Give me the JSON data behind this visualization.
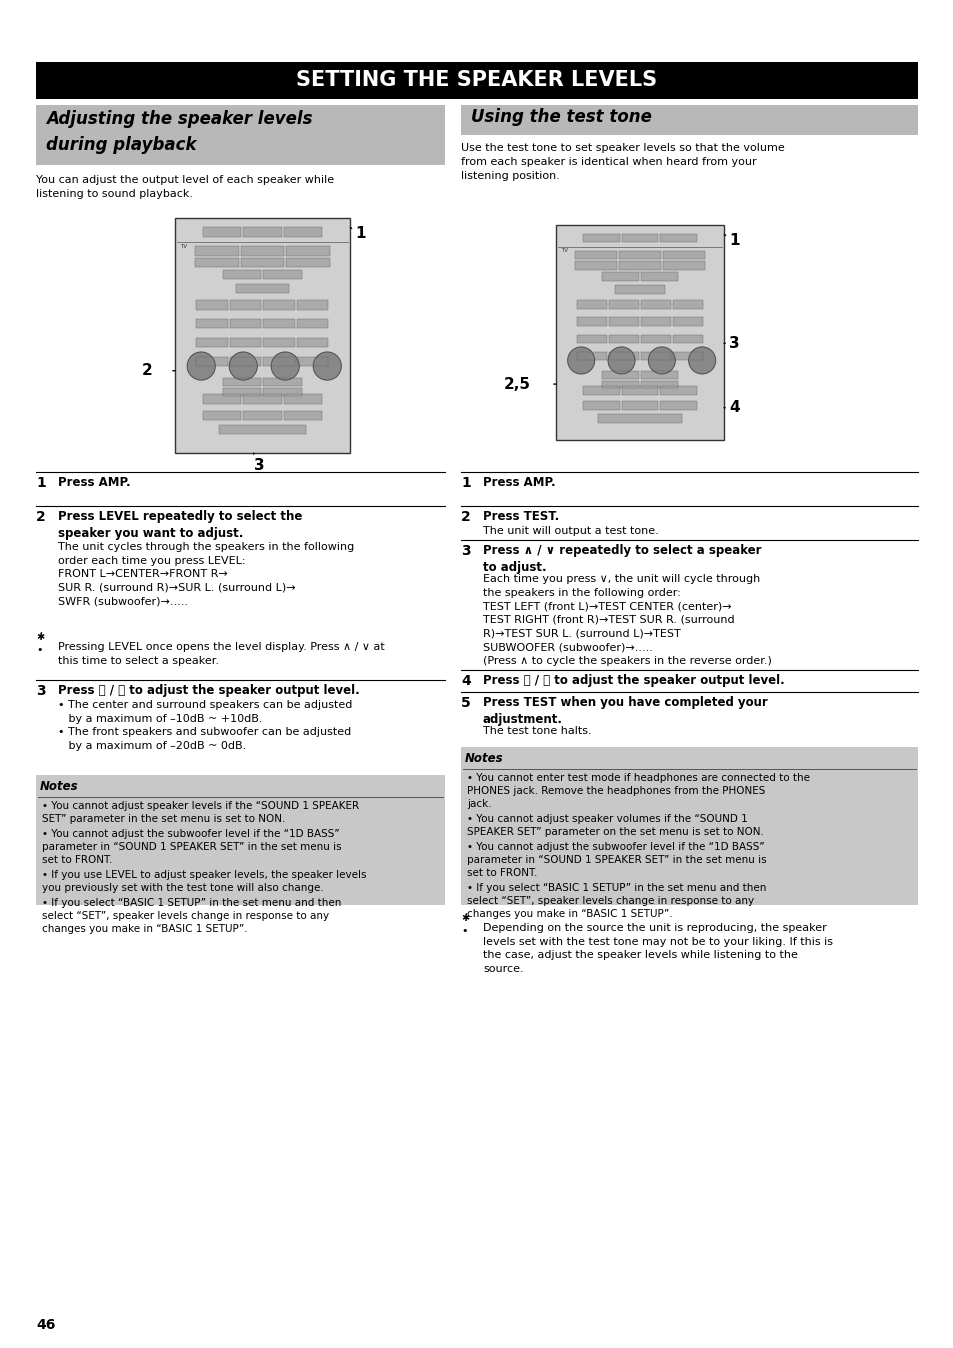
{
  "bg_color": "#ffffff",
  "title_bar": {
    "text": "SETTING THE SPEAKER LEVELS",
    "bg_color": "#000000",
    "text_color": "#ffffff",
    "font_size": 15,
    "bold": true
  },
  "left_section_header": "Adjusting the speaker levels\nduring playback",
  "right_section_header": "Using the test tone",
  "section_header_bg": "#b8b8b8",
  "section_header_text_color": "#000000",
  "section_header_font_size": 12,
  "left_intro": "You can adjust the output level of each speaker while\nlistening to sound playback.",
  "right_intro": "Use the test tone to set speaker levels so that the volume\nfrom each speaker is identical when heard from your\nlistening position.",
  "left_tip": "Pressing LEVEL once opens the level display. Press ∧ / ∨ at\nthis time to select a speaker.",
  "left_notes_title": "Notes",
  "left_notes": [
    "You cannot adjust speaker levels if the “SOUND 1 SPEAKER\nSET” parameter in the set menu is set to NON.",
    "You cannot adjust the subwoofer level if the “1D BASS”\nparameter in “SOUND 1 SPEAKER SET” in the set menu is\nset to FRONT.",
    "If you use LEVEL to adjust speaker levels, the speaker levels\nyou previously set with the test tone will also change.",
    "If you select “BASIC 1 SETUP” in the set menu and then\nselect “SET”, speaker levels change in response to any\nchanges you make in “BASIC 1 SETUP”."
  ],
  "right_steps_data": [
    {
      "num": "1",
      "bold_text": "Press AMP.",
      "normal_text": ""
    },
    {
      "num": "2",
      "bold_text": "Press TEST.",
      "normal_text": "The unit will output a test tone."
    },
    {
      "num": "3",
      "bold_text": "Press ∧ / ∨ repeatedly to select a speaker\nto adjust.",
      "normal_text": "Each time you press ∨, the unit will cycle through\nthe speakers in the following order:\nTEST LEFT (front L)→TEST CENTER (center)→\nTEST RIGHT (front R)→TEST SUR R. (surround\nR)→TEST SUR L. (surround L)→TEST\nSUBWOOFER (subwoofer)→.....\n(Press ∧ to cycle the speakers in the reverse order.)"
    },
    {
      "num": "4",
      "bold_text": "Press 〈 / 〉 to adjust the speaker output level.",
      "normal_text": ""
    },
    {
      "num": "5",
      "bold_text": "Press TEST when you have completed your\nadjustment.",
      "normal_text": "The test tone halts."
    }
  ],
  "right_notes_title": "Notes",
  "right_notes": [
    "You cannot enter test mode if headphones are connected to the\nPHONES jack. Remove the headphones from the PHONES\njack.",
    "You cannot adjust speaker volumes if the “SOUND 1\nSPEAKER SET” parameter on the set menu is set to NON.",
    "You cannot adjust the subwoofer level if the “1D BASS”\nparameter in “SOUND 1 SPEAKER SET” in the set menu is\nset to FRONT.",
    "If you select “BASIC 1 SETUP” in the set menu and then\nselect “SET”, speaker levels change in response to any\nchanges you make in “BASIC 1 SETUP”."
  ],
  "right_tip": "Depending on the source the unit is reproducing, the speaker\nlevels set with the test tone may not be to your liking. If this is\nthe case, adjust the speaker levels while listening to the\nsource.",
  "page_number": "46",
  "notes_bg": "#c8c8c8",
  "body_font_size": 8.0,
  "step_num_font_size": 10,
  "step_bold_font_size": 8.5,
  "notes_font_size": 7.5
}
